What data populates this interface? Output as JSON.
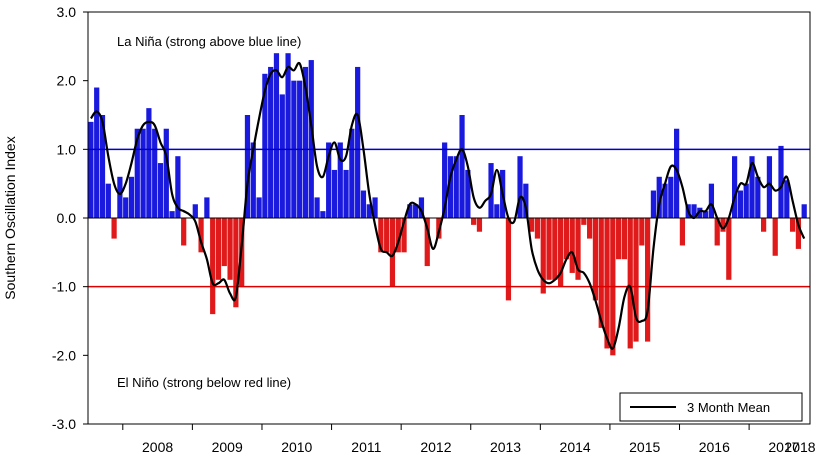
{
  "chart_data": {
    "type": "bar",
    "title": "",
    "xlabel": "",
    "ylabel": "Southern Oscillation Index",
    "ylim": [
      -3.0,
      3.0
    ],
    "yticks": [
      "3.0",
      "2.0",
      "1.0",
      "0.0",
      "-1.0",
      "-2.0",
      "-3.0"
    ],
    "x_start": "2007-07",
    "year_labels": [
      "2008",
      "2009",
      "2010",
      "2011",
      "2012",
      "2013",
      "2014",
      "2015",
      "2016",
      "2017",
      "2018"
    ],
    "annotations": {
      "la_nina": "La Niña (strong above blue line)",
      "el_nino": "El Niño (strong below red line)"
    },
    "thresholds": [
      {
        "value": 1.0,
        "color": "#0000cc"
      },
      {
        "value": -1.0,
        "color": "#dd0000"
      }
    ],
    "colors": {
      "positive": "#1a1adf",
      "negative": "#e01a1a",
      "line": "#000000"
    },
    "series": [
      {
        "kind": "bar",
        "values": [
          1.4,
          1.9,
          1.5,
          0.5,
          -0.3,
          0.6,
          0.3,
          0.6,
          1.3,
          1.3,
          1.6,
          1.3,
          0.8,
          1.3,
          0.1,
          0.9,
          -0.4,
          0.0,
          0.2,
          -0.5,
          0.3,
          -1.4,
          -0.9,
          -0.7,
          -0.9,
          -1.3,
          -1.0,
          1.5,
          1.1,
          0.3,
          2.1,
          2.2,
          2.4,
          1.8,
          2.4,
          2.0,
          2.0,
          2.2,
          2.3,
          0.3,
          0.1,
          1.1,
          0.7,
          1.1,
          0.7,
          1.3,
          2.2,
          0.4,
          0.2,
          0.3,
          -0.5,
          -0.5,
          -1.0,
          -0.5,
          -0.5,
          0.2,
          0.2,
          0.3,
          -0.7,
          0.0,
          -0.3,
          1.1,
          0.9,
          0.9,
          1.5,
          0.7,
          -0.1,
          -0.2,
          0.0,
          0.8,
          0.2,
          0.7,
          -1.2,
          0.0,
          0.9,
          0.5,
          -0.2,
          -0.3,
          -1.1,
          -0.9,
          -0.9,
          -1.0,
          -0.6,
          -0.8,
          -0.9,
          -0.1,
          -0.3,
          -1.2,
          -1.6,
          -1.9,
          -2.0,
          -0.6,
          -0.6,
          -1.9,
          -1.8,
          -0.4,
          -1.8,
          0.4,
          0.6,
          0.5,
          0.6,
          1.3,
          -0.4,
          0.2,
          0.2,
          0.15,
          0.1,
          0.5,
          -0.4,
          -0.2,
          -0.9,
          0.9,
          0.4,
          0.5,
          0.9,
          0.6,
          -0.2,
          0.9,
          -0.55,
          1.05,
          0.55,
          -0.2,
          -0.45,
          0.2
        ]
      },
      {
        "kind": "line",
        "name": "3 Month Mean",
        "values": [
          1.45,
          1.55,
          1.4,
          0.9,
          0.5,
          0.35,
          0.5,
          0.8,
          1.15,
          1.35,
          1.4,
          1.35,
          1.1,
          0.9,
          0.35,
          0.15,
          0.1,
          0.05,
          -0.05,
          -0.35,
          -0.6,
          -0.95,
          -0.95,
          -0.9,
          -1.1,
          -1.15,
          -0.4,
          0.5,
          1.0,
          1.45,
          1.85,
          2.1,
          2.15,
          2.05,
          2.2,
          2.15,
          2.25,
          1.9,
          1.35,
          0.75,
          0.6,
          0.9,
          1.1,
          0.85,
          0.9,
          1.35,
          1.5,
          1.0,
          0.35,
          -0.1,
          -0.45,
          -0.5,
          -0.55,
          -0.35,
          -0.05,
          0.2,
          0.2,
          0.1,
          -0.15,
          -0.45,
          -0.2,
          0.15,
          0.6,
          0.85,
          1.0,
          0.75,
          0.3,
          0.15,
          0.25,
          0.35,
          0.7,
          0.35,
          0.0,
          -0.05,
          0.3,
          0.15,
          -0.45,
          -0.75,
          -0.9,
          -0.95,
          -0.9,
          -0.8,
          -0.6,
          -0.5,
          -0.75,
          -0.8,
          -0.95,
          -1.2,
          -1.5,
          -1.75,
          -1.9,
          -1.6,
          -1.15,
          -1.0,
          -1.45,
          -1.5,
          -1.35,
          -0.45,
          0.2,
          0.5,
          0.75,
          0.7,
          0.45,
          0.1,
          0.0,
          0.1,
          0.1,
          0.2,
          0.0,
          -0.15,
          0.0,
          0.3,
          0.5,
          0.5,
          0.8,
          0.6,
          0.45,
          0.5,
          0.4,
          0.45,
          0.6,
          0.25,
          -0.1,
          -0.3
        ]
      }
    ],
    "legend": {
      "position": "bottom-right",
      "label": "3 Month Mean"
    }
  }
}
